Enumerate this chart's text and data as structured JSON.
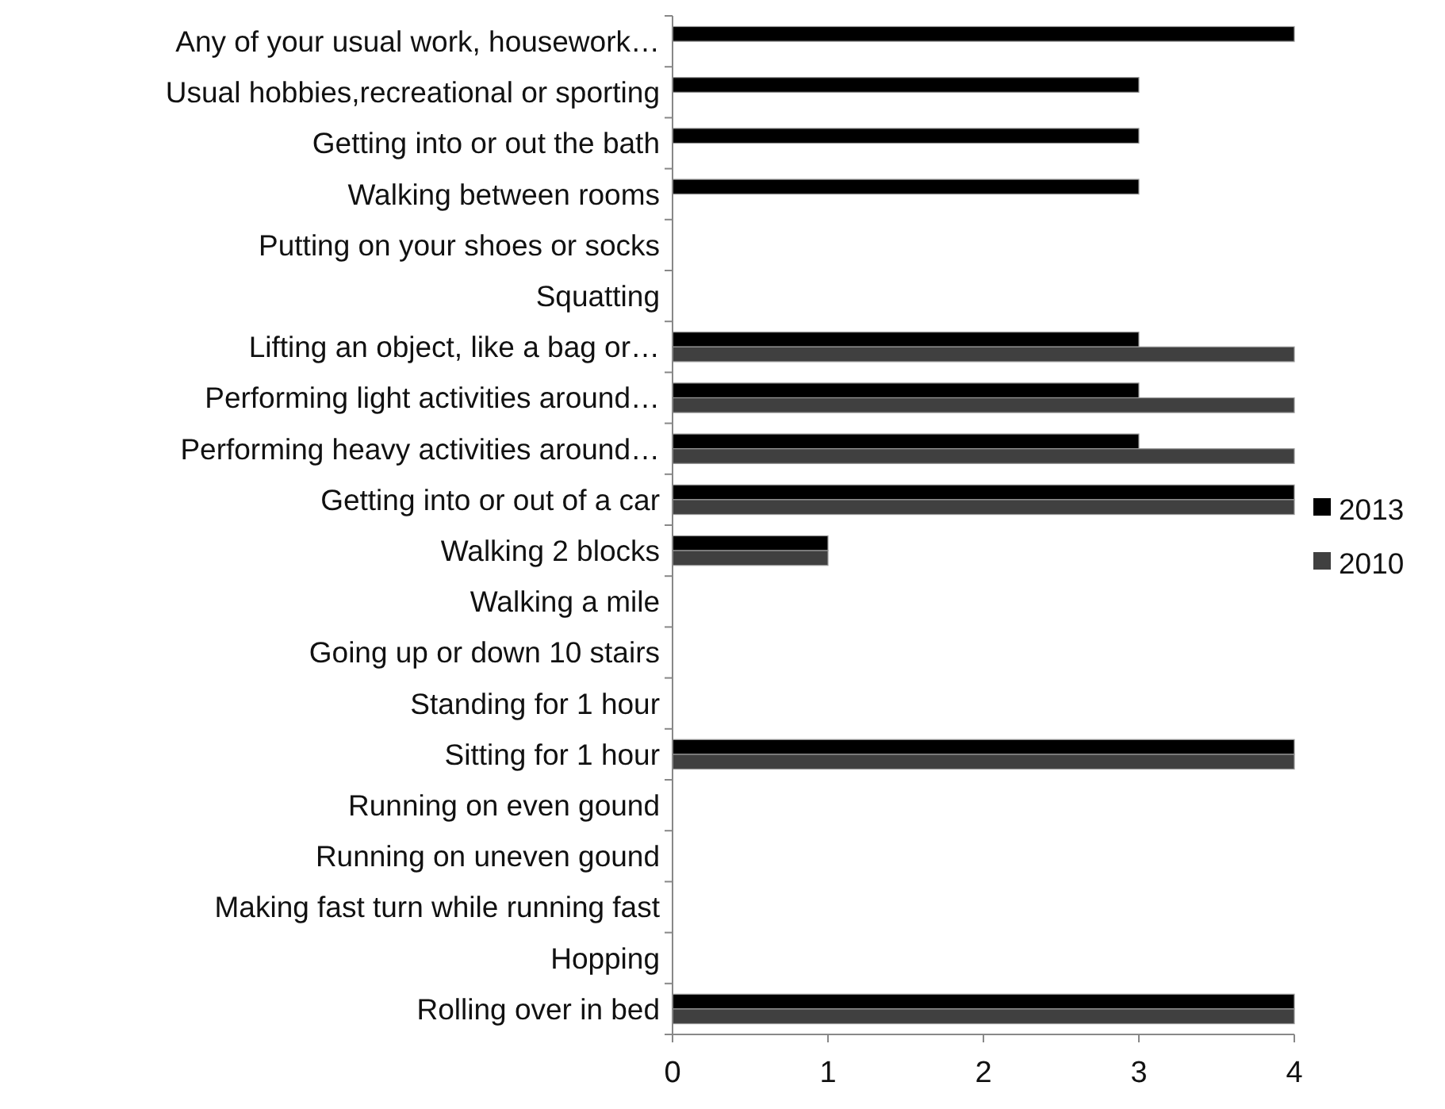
{
  "chart_data": {
    "type": "bar",
    "orientation": "horizontal",
    "categories": [
      "Any of your usual work, housework…",
      "Usual hobbies,recreational or sporting",
      "Getting into or out the bath",
      "Walking between rooms",
      "Putting on your shoes or socks",
      "Squatting",
      "Lifting an object, like a bag or…",
      "Performing light activities around…",
      "Performing heavy activities around…",
      "Getting into or out of a car",
      "Walking 2 blocks",
      "Walking a mile",
      "Going up or down 10 stairs",
      "Standing for 1 hour",
      "Sitting for 1 hour",
      "Running on even gound",
      "Running on uneven gound",
      "Making fast turn while running fast",
      "Hopping",
      "Rolling over in bed"
    ],
    "series": [
      {
        "name": "2013",
        "color": "#000000",
        "values": [
          4,
          3,
          3,
          3,
          0,
          0,
          3,
          3,
          3,
          4,
          1,
          0,
          0,
          0,
          4,
          0,
          0,
          0,
          0,
          4
        ]
      },
      {
        "name": "2010",
        "color": "#404040",
        "values": [
          0,
          0,
          0,
          0,
          0,
          0,
          4,
          4,
          4,
          4,
          1,
          0,
          0,
          0,
          4,
          0,
          0,
          0,
          0,
          4
        ]
      }
    ],
    "xlim": [
      0,
      4
    ],
    "xticks": [
      0,
      1,
      2,
      3,
      4
    ],
    "grid": false,
    "legend": "right"
  }
}
